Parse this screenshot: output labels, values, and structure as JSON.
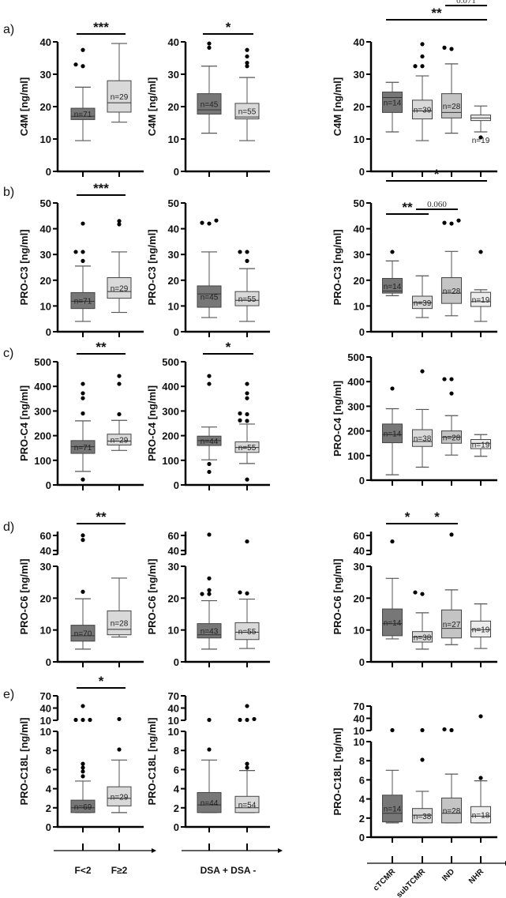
{
  "chart_data": {
    "type": "box",
    "group_sets": {
      "fibrosis": [
        "F<2",
        "F≥2"
      ],
      "dsa": [
        "DSA +",
        "DSA -"
      ],
      "rejection": [
        "cTCMR",
        "subTCMR",
        "IND",
        "NHR"
      ]
    },
    "x_axis_labels": {
      "fibrosis": "F<2   F≥2",
      "dsa": "DSA + DSA -",
      "rejection": [
        "cTCMR",
        "subTCMR",
        "IND",
        "NHR"
      ]
    },
    "colors": {
      "group_fills": [
        "#777777",
        "#d9d9d9",
        "#c4c4c4",
        "#ececec"
      ],
      "axis": "#000000"
    },
    "rows": [
      {
        "panel_label": "a)",
        "ylabel": "C4M [ng/ml]",
        "ylim": [
          0,
          40
        ],
        "yticks": [
          "0",
          "10",
          "20",
          "30",
          "40"
        ],
        "panels": [
          {
            "group_set": "fibrosis",
            "boxes": [
              {
                "n": "n=71",
                "q1": 16,
                "median": 17,
                "q3": 19.5,
                "whisker_low": 9.5,
                "whisker_high": 26,
                "outliers": [
                  32.5,
                  33,
                  37.5
                ]
              },
              {
                "n": "n=29",
                "q1": 18.3,
                "median": 21.2,
                "q3": 28,
                "whisker_low": 15.2,
                "whisker_high": 39.5,
                "outliers": []
              }
            ],
            "significance": [
              {
                "from": 0,
                "to": 1,
                "label": "***"
              }
            ]
          },
          {
            "group_set": "dsa",
            "boxes": [
              {
                "n": "n=45",
                "q1": 17.7,
                "median": 19,
                "q3": 24,
                "whisker_low": 11.8,
                "whisker_high": 32.5,
                "outliers": [
                  38.2,
                  39.5
                ]
              },
              {
                "n": "n=55",
                "q1": 16.2,
                "median": 16.8,
                "q3": 21,
                "whisker_low": 9.5,
                "whisker_high": 29,
                "outliers": [
                  32.5,
                  33.5,
                  35.5,
                  37.5
                ]
              }
            ],
            "significance": [
              {
                "from": 0,
                "to": 1,
                "label": "*"
              }
            ]
          },
          {
            "group_set": "rejection",
            "boxes": [
              {
                "n": "n=14",
                "q1": 18.2,
                "median": 22.8,
                "q3": 24.5,
                "whisker_low": 12.2,
                "whisker_high": 27.5,
                "outliers": []
              },
              {
                "n": "n=39",
                "q1": 16.2,
                "median": 18.7,
                "q3": 22,
                "whisker_low": 9.5,
                "whisker_high": 29.5,
                "outliers": [
                  32.5,
                  32.5,
                  35.5,
                  39.3
                ]
              },
              {
                "n": "n=28",
                "q1": 16.5,
                "median": 18.2,
                "q3": 24,
                "whisker_low": 11.8,
                "whisker_high": 33.2,
                "outliers": [
                  37.8,
                  38.2
                ]
              },
              {
                "n": "n=19",
                "q1": 15.7,
                "median": 16.5,
                "q3": 17.4,
                "whisker_low": 12.2,
                "whisker_high": 20.2,
                "outliers": [
                  10.5
                ]
              }
            ],
            "significance": [
              {
                "from": 0,
                "to": 3,
                "label": "**"
              },
              {
                "from": 2,
                "to": 3,
                "label": "0.071"
              }
            ]
          }
        ]
      },
      {
        "panel_label": "b)",
        "ylabel": "PRO-C3 [ng/ml]",
        "ylim": [
          0,
          50
        ],
        "yticks": [
          "0",
          "10",
          "20",
          "30",
          "40",
          "50"
        ],
        "panels": [
          {
            "group_set": "fibrosis",
            "boxes": [
              {
                "n": "n=71",
                "q1": 9,
                "median": 11.8,
                "q3": 15.2,
                "whisker_low": 4,
                "whisker_high": 25.5,
                "outliers": [
                  27.5,
                  31,
                  31,
                  42
                ]
              },
              {
                "n": "n=29",
                "q1": 13,
                "median": 15.6,
                "q3": 21,
                "whisker_low": 7.5,
                "whisker_high": 31,
                "outliers": [
                  41.7,
                  43
                ]
              }
            ],
            "significance": [
              {
                "from": 0,
                "to": 1,
                "label": "***"
              }
            ]
          },
          {
            "group_set": "dsa",
            "boxes": [
              {
                "n": "n=45",
                "q1": 9.5,
                "median": 14.7,
                "q3": 17.8,
                "whisker_low": 5.5,
                "whisker_high": 31,
                "outliers": [
                  42,
                  42.3,
                  43.2
                ]
              },
              {
                "n": "n=55",
                "q1": 10.1,
                "median": 12.2,
                "q3": 15.6,
                "whisker_low": 4,
                "whisker_high": 24.5,
                "outliers": [
                  27.5,
                  31,
                  31
                ]
              }
            ],
            "significance": []
          },
          {
            "group_set": "rejection",
            "boxes": [
              {
                "n": "n=14",
                "q1": 15,
                "median": 15.8,
                "q3": 20.7,
                "whisker_low": 14,
                "whisker_high": 27.5,
                "outliers": [
                  31
                ]
              },
              {
                "n": "n=39",
                "q1": 9,
                "median": 11.3,
                "q3": 13.8,
                "whisker_low": 5.5,
                "whisker_high": 21.7,
                "outliers": []
              },
              {
                "n": "n=28",
                "q1": 11,
                "median": 15,
                "q3": 21,
                "whisker_low": 6.2,
                "whisker_high": 31.2,
                "outliers": [
                  42,
                  42.3,
                  43.2
                ]
              },
              {
                "n": "n=19",
                "q1": 9.8,
                "median": 11.7,
                "q3": 15.3,
                "whisker_low": 4,
                "whisker_high": 16.3,
                "outliers": [
                  31
                ]
              }
            ],
            "significance": [
              {
                "from": 0,
                "to": 3,
                "label": "*"
              },
              {
                "from": 0,
                "to": 1,
                "label": "**"
              },
              {
                "from": 1,
                "to": 2,
                "label": "0.060"
              }
            ]
          }
        ]
      },
      {
        "panel_label": "c)",
        "ylabel": "PRO-C4 [ng/ml]",
        "ylim": [
          0,
          500
        ],
        "yticks": [
          "0",
          "100",
          "200",
          "300",
          "400",
          "500"
        ],
        "panels": [
          {
            "group_set": "fibrosis",
            "boxes": [
              {
                "n": "n=71",
                "q1": 128,
                "median": 155,
                "q3": 180,
                "whisker_low": 55,
                "whisker_high": 260,
                "outliers": [
                  22,
                  290,
                  352,
                  372,
                  410
                ]
              },
              {
                "n": "n=29",
                "q1": 162,
                "median": 178,
                "q3": 206,
                "whisker_low": 140,
                "whisker_high": 262,
                "outliers": [
                  287,
                  410,
                  442
                ]
              }
            ],
            "significance": [
              {
                "from": 0,
                "to": 1,
                "label": "**"
              }
            ]
          },
          {
            "group_set": "dsa",
            "boxes": [
              {
                "n": "n=44",
                "q1": 160,
                "median": 180,
                "q3": 198,
                "whisker_low": 102,
                "whisker_high": 235,
                "outliers": [
                  53,
                  85,
                  410,
                  442
                ]
              },
              {
                "n": "n=55",
                "q1": 132,
                "median": 152,
                "q3": 175,
                "whisker_low": 87,
                "whisker_high": 247,
                "outliers": [
                  22,
                  260,
                  262,
                  287,
                  290,
                  352,
                  372,
                  410
                ]
              }
            ],
            "significance": [
              {
                "from": 0,
                "to": 1,
                "label": "*"
              }
            ]
          },
          {
            "group_set": "rejection",
            "boxes": [
              {
                "n": "n=14",
                "q1": 152,
                "median": 185,
                "q3": 228,
                "whisker_low": 22,
                "whisker_high": 290,
                "outliers": [
                  372
                ]
              },
              {
                "n": "n=38",
                "q1": 137,
                "median": 157,
                "q3": 205,
                "whisker_low": 53,
                "whisker_high": 287,
                "outliers": [
                  442
                ]
              },
              {
                "n": "n=28",
                "q1": 150,
                "median": 175,
                "q3": 200,
                "whisker_low": 102,
                "whisker_high": 262,
                "outliers": [
                  352,
                  410,
                  410
                ]
              },
              {
                "n": "n=19",
                "q1": 128,
                "median": 150,
                "q3": 165,
                "whisker_low": 97,
                "whisker_high": 185,
                "outliers": []
              }
            ],
            "significance": []
          }
        ]
      },
      {
        "panel_label": "d)",
        "ylabel": "PRO-C6 [ng/ml]",
        "ylim": [
          0,
          30
        ],
        "ylim_upper_segment": [
          35,
          65
        ],
        "yticks": [
          "0",
          "10",
          "20",
          "30"
        ],
        "yticks_upper": [
          "40",
          "60"
        ],
        "panels": [
          {
            "group_set": "fibrosis",
            "boxes": [
              {
                "n": "n=70",
                "q1": 6.5,
                "median": 8.2,
                "q3": 11.5,
                "whisker_low": 4,
                "whisker_high": 19.8,
                "outliers": [
                  22,
                  54,
                  60
                ]
              },
              {
                "n": "n=28",
                "q1": 8.5,
                "median": 10.2,
                "q3": 16,
                "whisker_low": 7.8,
                "whisker_high": 26.3,
                "outliers": []
              }
            ],
            "significance": [
              {
                "from": 0,
                "to": 1,
                "label": "**"
              }
            ]
          },
          {
            "group_set": "dsa",
            "boxes": [
              {
                "n": "n=43",
                "q1": 7.5,
                "median": 8.5,
                "q3": 12,
                "whisker_low": 4,
                "whisker_high": 19.2,
                "outliers": [
                  21.3,
                  21.3,
                  22.5,
                  26.2,
                  61
                ]
              },
              {
                "n": "n=55",
                "q1": 7,
                "median": 9.3,
                "q3": 12.3,
                "whisker_low": 4.2,
                "whisker_high": 19.7,
                "outliers": [
                  21.5,
                  21.8,
                  52
                ]
              }
            ],
            "significance": []
          },
          {
            "group_set": "rejection",
            "boxes": [
              {
                "n": "n=14",
                "q1": 8.2,
                "median": 12,
                "q3": 16.6,
                "whisker_low": 7.2,
                "whisker_high": 26.2,
                "outliers": [
                  52
                ]
              },
              {
                "n": "n=38",
                "q1": 6.2,
                "median": 7.8,
                "q3": 9.5,
                "whisker_low": 4,
                "whisker_high": 15.4,
                "outliers": [
                  21.3,
                  21.8
                ]
              },
              {
                "n": "n=27",
                "q1": 7.5,
                "median": 10.5,
                "q3": 16.3,
                "whisker_low": 5.4,
                "whisker_high": 22.6,
                "outliers": [
                  61
                ]
              },
              {
                "n": "n=19",
                "q1": 7.8,
                "median": 10.1,
                "q3": 12.8,
                "whisker_low": 4.2,
                "whisker_high": 18.2,
                "outliers": []
              }
            ],
            "significance": [
              {
                "from": 0,
                "to": 1,
                "label": "*"
              },
              {
                "from": 1,
                "to": 2,
                "label": "*"
              }
            ]
          }
        ]
      },
      {
        "panel_label": "e)",
        "ylabel": "PRO-C18L [ng/ml]",
        "ylim": [
          0,
          10
        ],
        "ylim_upper_segment": [
          10,
          70
        ],
        "yticks": [
          "0",
          "2",
          "4",
          "6",
          "8",
          "10"
        ],
        "yticks_upper": [
          "10",
          "40",
          "70"
        ],
        "panels": [
          {
            "group_set": "fibrosis",
            "boxes": [
              {
                "n": "n=69",
                "q1": 1.5,
                "median": 2,
                "q3": 2.8,
                "whisker_low": 1.5,
                "whisker_high": 4.8,
                "outliers": [
                  5.3,
                  5.8,
                  6.2,
                  6.6,
                  11,
                  11,
                  11,
                  45
                ]
              },
              {
                "n": "n=29",
                "q1": 2.2,
                "median": 3,
                "q3": 4.2,
                "whisker_low": 1.5,
                "whisker_high": 7,
                "outliers": [
                  8.1,
                  13
                ]
              }
            ],
            "significance": [
              {
                "from": 0,
                "to": 1,
                "label": "*"
              }
            ]
          },
          {
            "group_set": "dsa",
            "boxes": [
              {
                "n": "n=44",
                "q1": 1.5,
                "median": 2.3,
                "q3": 3.6,
                "whisker_low": 1.5,
                "whisker_high": 7,
                "outliers": [
                  8.1,
                  11
                ]
              },
              {
                "n": "n=54",
                "q1": 1.5,
                "median": 2,
                "q3": 3.2,
                "whisker_low": 1.5,
                "whisker_high": 5.9,
                "outliers": [
                  6.2,
                  6.6,
                  11,
                  11,
                  13,
                  45
                ]
              }
            ],
            "significance": []
          },
          {
            "group_set": "rejection",
            "boxes": [
              {
                "n": "n=14",
                "q1": 1.6,
                "median": 2.5,
                "q3": 4.4,
                "whisker_low": 1.5,
                "whisker_high": 7,
                "outliers": [
                  11
                ]
              },
              {
                "n": "n=38",
                "q1": 1.5,
                "median": 2.3,
                "q3": 3,
                "whisker_low": 1.5,
                "whisker_high": 4.8,
                "outliers": [
                  8.1,
                  11
                ]
              },
              {
                "n": "n=28",
                "q1": 1.5,
                "median": 2.5,
                "q3": 4.1,
                "whisker_low": 1.5,
                "whisker_high": 6.6,
                "outliers": [
                  11,
                  13
                ]
              },
              {
                "n": "n=18",
                "q1": 1.5,
                "median": 2.2,
                "q3": 3.2,
                "whisker_low": 1.5,
                "whisker_high": 5.9,
                "outliers": [
                  6.2,
                  45
                ]
              }
            ],
            "significance": []
          }
        ]
      }
    ]
  }
}
